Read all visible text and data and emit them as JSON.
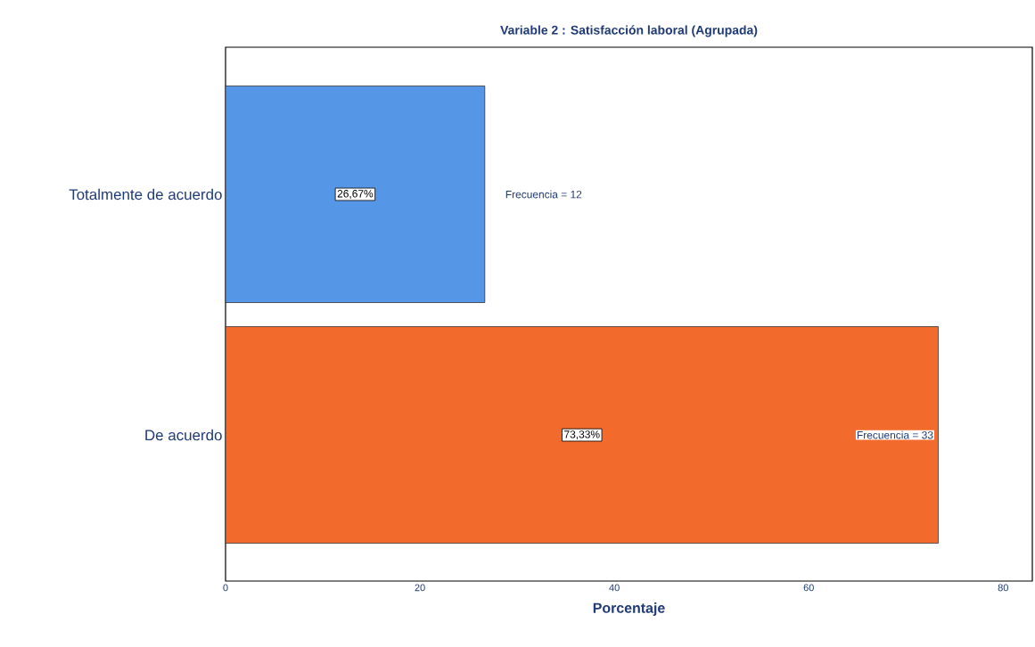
{
  "chart_data": {
    "type": "bar",
    "orientation": "horizontal",
    "title": "Variable 2 : Satisfacción laboral (Agrupada)",
    "xlabel": "Porcentaje",
    "categories": [
      "Totalmente de acuerdo",
      "De acuerdo"
    ],
    "values": [
      26.67,
      73.33
    ],
    "colors": [
      "#5596e6",
      "#f26a2c"
    ],
    "value_labels": [
      "26,67%",
      "73,33%"
    ],
    "xlim": [
      0,
      83
    ],
    "xticks": [
      0,
      20,
      40,
      60,
      80
    ],
    "grid": false,
    "annotations": [
      "Frecuencia = 12",
      "Frecuencia = 33"
    ]
  }
}
